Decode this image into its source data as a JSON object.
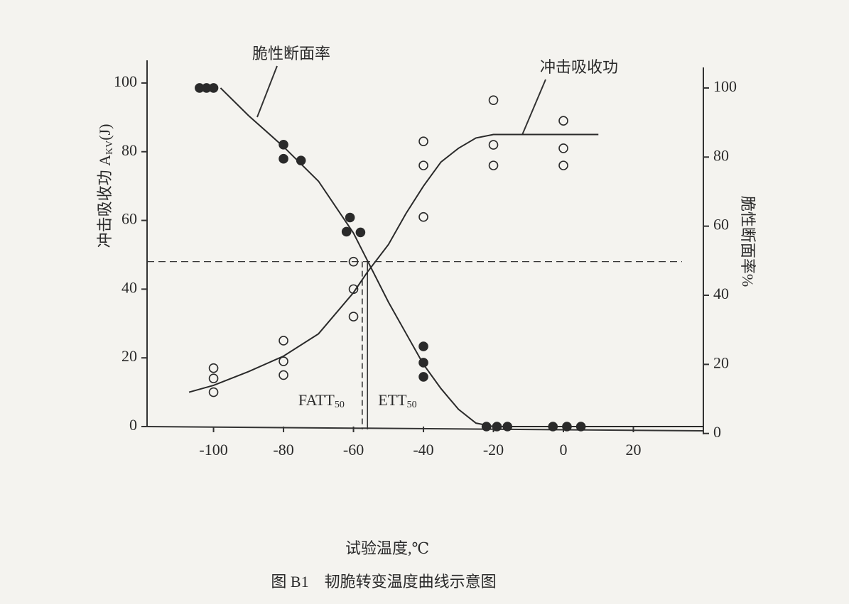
{
  "chart_data": {
    "type": "scatter",
    "xlabel": "试验温度,℃",
    "caption": "图 B1　韧脆转变温度曲线示意图",
    "ylabel": "冲击吸收功 A",
    "ylabel_sub": "KV",
    "ylabel_unit": "(J)",
    "y2label": "脆性断面率%",
    "xlim": [
      -119,
      40
    ],
    "xticks": [
      -100,
      -80,
      -60,
      -40,
      -20,
      0,
      20
    ],
    "ylim": [
      0,
      106.6
    ],
    "yticks": [
      0,
      20,
      40,
      60,
      80,
      100
    ],
    "y2lim": [
      2,
      108
    ],
    "y2ticks": [
      0,
      20,
      40,
      60,
      80,
      100
    ],
    "series": [
      {
        "name": "冲击吸收功",
        "axis": "y",
        "marker": "open",
        "color": "#2a2a2a",
        "x": [
          -100,
          -100,
          -100,
          -80,
          -80,
          -80,
          -60,
          -60,
          -60,
          -40,
          -40,
          -40,
          -20,
          -20,
          -20,
          0,
          0,
          0
        ],
        "values": [
          17,
          14,
          10,
          25,
          19,
          15,
          48,
          40,
          32,
          83,
          76,
          61,
          95,
          82,
          76,
          89,
          81,
          76
        ],
        "curve": {
          "x": [
            -107,
            -100,
            -90,
            -80,
            -70,
            -60,
            -56,
            -50,
            -45,
            -40,
            -35,
            -30,
            -25,
            -20,
            0,
            10
          ],
          "values": [
            10,
            12,
            16,
            20.5,
            27,
            39,
            45,
            53,
            62,
            70,
            77,
            81,
            84,
            85,
            85,
            85
          ]
        }
      },
      {
        "name": "脆性断面率",
        "axis": "y2",
        "marker": "filled",
        "color": "#2a2a2a",
        "x": [
          -104,
          -102,
          -100,
          -80,
          -80,
          -75,
          -61,
          -62,
          -58,
          -40,
          -40,
          -40,
          -22,
          -19,
          -16,
          -3,
          1,
          5
        ],
        "values": [
          100,
          100,
          100,
          83.6,
          79.5,
          79,
          62.5,
          58.4,
          58.2,
          25.2,
          20.5,
          16.4,
          2,
          2,
          2,
          2,
          2,
          2
        ],
        "curve": {
          "x": [
            -98,
            -90,
            -80,
            -70,
            -60,
            -55,
            -50,
            -45,
            -40,
            -35,
            -30,
            -25,
            -20,
            0,
            40
          ],
          "values": [
            100,
            92,
            83,
            73,
            58,
            48,
            38,
            29,
            20,
            13,
            7,
            3,
            2,
            2,
            2
          ]
        }
      }
    ],
    "reference_y": 48,
    "markers": [
      {
        "label": "FATT",
        "sub": "50",
        "x": -57.5,
        "style": "dashed"
      },
      {
        "label": "ETT",
        "sub": "50",
        "x": -56,
        "style": "solid"
      }
    ]
  }
}
